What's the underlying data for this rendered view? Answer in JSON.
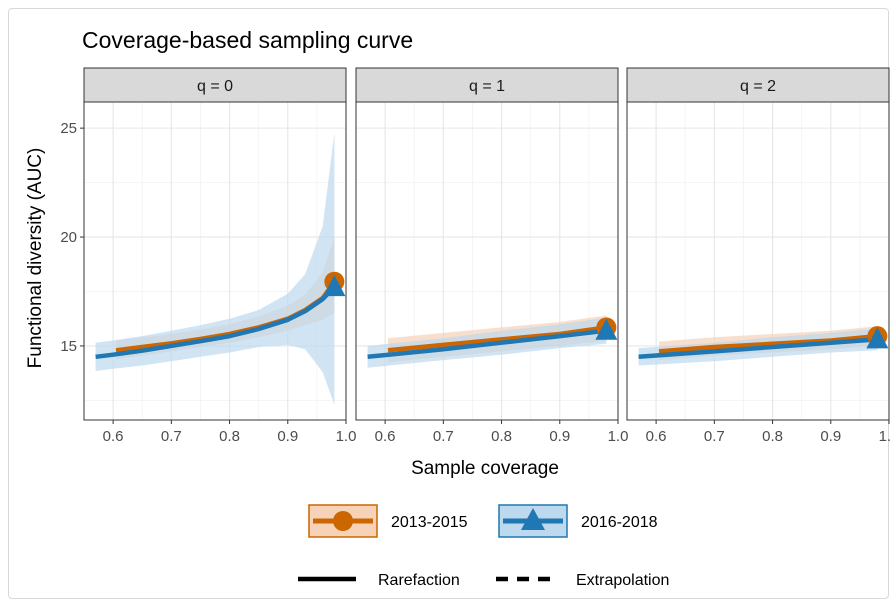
{
  "chart_data": {
    "type": "line",
    "title": "Coverage-based sampling curve",
    "xlabel": "Sample coverage",
    "ylabel": "Functional diversity (AUC)",
    "xlim": [
      0.55,
      1.0
    ],
    "ylim": [
      11.6,
      26.2
    ],
    "x_ticks": [
      "0.6",
      "0.7",
      "0.8",
      "0.9",
      "1.0"
    ],
    "x_tick_values": [
      0.6,
      0.7,
      0.8,
      0.9,
      1.0
    ],
    "y_ticks": [
      "15",
      "20",
      "25"
    ],
    "y_tick_values": [
      15,
      20,
      25
    ],
    "grid": true,
    "legend_position": "bottom",
    "panels": [
      {
        "label": "q = 0",
        "series": [
          {
            "name": "2013-2015",
            "color": "#cc6600",
            "marker": "circle",
            "points": [
              [
                0.605,
                14.8
              ],
              [
                0.65,
                14.95
              ],
              [
                0.7,
                15.12
              ],
              [
                0.75,
                15.32
              ],
              [
                0.8,
                15.55
              ],
              [
                0.85,
                15.85
              ],
              [
                0.9,
                16.25
              ],
              [
                0.93,
                16.65
              ],
              [
                0.96,
                17.2
              ],
              [
                0.98,
                17.95
              ]
            ],
            "ci_lower": [
              14.4,
              14.55,
              14.75,
              14.95,
              15.15,
              15.4,
              15.7,
              15.95,
              16.2,
              16.5
            ],
            "ci_upper": [
              15.25,
              15.4,
              15.55,
              15.75,
              16.0,
              16.35,
              16.85,
              17.35,
              18.4,
              20.0
            ],
            "observed": [
              0.98,
              17.95
            ]
          },
          {
            "name": "2016-2018",
            "color": "#1f77b4",
            "marker": "triangle",
            "points": [
              [
                0.57,
                14.5
              ],
              [
                0.6,
                14.6
              ],
              [
                0.65,
                14.78
              ],
              [
                0.7,
                15.0
              ],
              [
                0.75,
                15.22
              ],
              [
                0.8,
                15.45
              ],
              [
                0.85,
                15.78
              ],
              [
                0.9,
                16.2
              ],
              [
                0.93,
                16.6
              ],
              [
                0.96,
                17.15
              ],
              [
                0.98,
                17.7
              ]
            ],
            "ci_lower": [
              13.85,
              13.95,
              14.1,
              14.3,
              14.5,
              14.7,
              14.95,
              15.05,
              14.85,
              13.8,
              12.3
            ],
            "ci_upper": [
              15.15,
              15.25,
              15.45,
              15.7,
              15.95,
              16.25,
              16.65,
              17.4,
              18.3,
              20.5,
              24.8
            ],
            "observed": [
              0.98,
              17.7
            ]
          }
        ]
      },
      {
        "label": "q = 1",
        "series": [
          {
            "name": "2013-2015",
            "color": "#cc6600",
            "marker": "circle",
            "points": [
              [
                0.605,
                14.8
              ],
              [
                0.7,
                15.05
              ],
              [
                0.8,
                15.3
              ],
              [
                0.9,
                15.55
              ],
              [
                0.98,
                15.85
              ]
            ],
            "ci_lower": [
              14.25,
              14.5,
              14.75,
              15.0,
              15.25
            ],
            "ci_upper": [
              15.35,
              15.6,
              15.85,
              16.1,
              16.4
            ],
            "observed": [
              0.98,
              15.85
            ]
          },
          {
            "name": "2016-2018",
            "color": "#1f77b4",
            "marker": "triangle",
            "points": [
              [
                0.57,
                14.5
              ],
              [
                0.7,
                14.85
              ],
              [
                0.8,
                15.15
              ],
              [
                0.9,
                15.45
              ],
              [
                0.98,
                15.7
              ]
            ],
            "ci_lower": [
              14.0,
              14.35,
              14.6,
              14.9,
              15.1
            ],
            "ci_upper": [
              15.0,
              15.35,
              15.7,
              16.0,
              16.3
            ],
            "observed": [
              0.98,
              15.7
            ]
          }
        ]
      },
      {
        "label": "q = 2",
        "series": [
          {
            "name": "2013-2015",
            "color": "#cc6600",
            "marker": "circle",
            "points": [
              [
                0.605,
                14.75
              ],
              [
                0.7,
                14.95
              ],
              [
                0.8,
                15.1
              ],
              [
                0.9,
                15.25
              ],
              [
                0.98,
                15.45
              ]
            ],
            "ci_lower": [
              14.35,
              14.55,
              14.7,
              14.85,
              15.0
            ],
            "ci_upper": [
              15.2,
              15.4,
              15.55,
              15.7,
              15.9
            ],
            "observed": [
              0.98,
              15.45
            ]
          },
          {
            "name": "2016-2018",
            "color": "#1f77b4",
            "marker": "triangle",
            "points": [
              [
                0.57,
                14.5
              ],
              [
                0.7,
                14.75
              ],
              [
                0.8,
                14.95
              ],
              [
                0.9,
                15.15
              ],
              [
                0.98,
                15.3
              ]
            ],
            "ci_lower": [
              14.1,
              14.3,
              14.5,
              14.7,
              14.8
            ],
            "ci_upper": [
              14.9,
              15.15,
              15.4,
              15.6,
              15.8
            ],
            "observed": [
              0.98,
              15.3
            ]
          }
        ]
      }
    ],
    "legend": {
      "groups": [
        {
          "label": "2013-2015",
          "color": "#cc6600",
          "fill": "#f5d2b8",
          "marker": "circle"
        },
        {
          "label": "2016-2018",
          "color": "#1f77b4",
          "fill": "#bcd9ee",
          "marker": "triangle"
        }
      ],
      "methods": [
        {
          "label": "Rarefaction",
          "line": "solid"
        },
        {
          "label": "Extrapolation",
          "line": "dashed"
        }
      ]
    }
  }
}
